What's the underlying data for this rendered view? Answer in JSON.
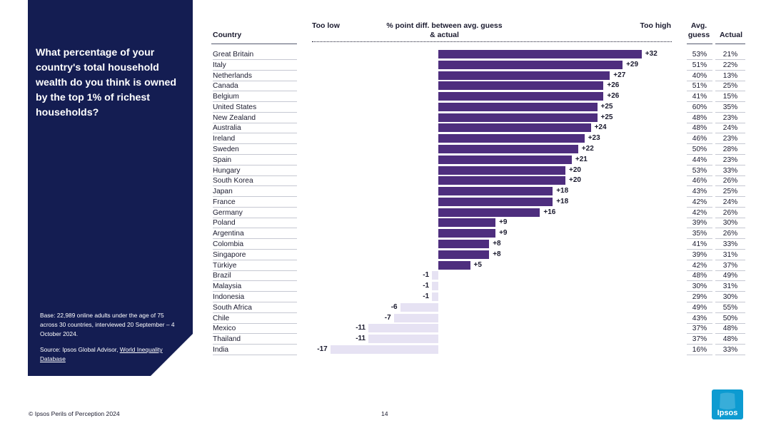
{
  "panel": {
    "question": "What percentage of your country's total household wealth do you think is owned by the top 1% of richest households?",
    "base": "Base: 22,989 online adults under the age of 75 across 30 countries, interviewed 20 September – 4 October 2024.",
    "source_prefix": "Source: Ipsos Global Advisor, ",
    "source_link": "World Inequality Database"
  },
  "headers": {
    "country": "Country",
    "too_low": "Too low",
    "diff": "% point diff. between avg. guess & actual",
    "too_high": "Too high",
    "avg_guess": "Avg. guess",
    "actual": "Actual"
  },
  "chart_data": {
    "type": "bar",
    "orientation": "horizontal-diverging",
    "title": "% point diff. between avg. guess & actual",
    "xlim": [
      -17,
      32
    ],
    "categories": [
      "Great Britain",
      "Italy",
      "Netherlands",
      "Canada",
      "Belgium",
      "United States",
      "New Zealand",
      "Australia",
      "Ireland",
      "Sweden",
      "Spain",
      "Hungary",
      "South Korea",
      "Japan",
      "France",
      "Germany",
      "Poland",
      "Argentina",
      "Colombia",
      "Singapore",
      "Türkiye",
      "Brazil",
      "Malaysia",
      "Indonesia",
      "South Africa",
      "Chile",
      "Mexico",
      "Thailand",
      "India"
    ],
    "values": [
      32,
      29,
      27,
      26,
      26,
      25,
      25,
      24,
      23,
      22,
      21,
      20,
      20,
      18,
      18,
      16,
      9,
      9,
      8,
      8,
      5,
      -1,
      -1,
      -1,
      -6,
      -7,
      -11,
      -11,
      -17
    ],
    "labels": [
      "+32",
      "+29",
      "+27",
      "+26",
      "+26",
      "+25",
      "+25",
      "+24",
      "+23",
      "+22",
      "+21",
      "+20",
      "+20",
      "+18",
      "+18",
      "+16",
      "+9",
      "+9",
      "+8",
      "+8",
      "+5",
      "-1",
      "-1",
      "-1",
      "-6",
      "-7",
      "-11",
      "-11",
      "-17"
    ],
    "avg_guess": [
      "53%",
      "51%",
      "40%",
      "51%",
      "41%",
      "60%",
      "48%",
      "48%",
      "46%",
      "50%",
      "44%",
      "53%",
      "46%",
      "43%",
      "42%",
      "42%",
      "39%",
      "35%",
      "41%",
      "39%",
      "42%",
      "48%",
      "30%",
      "29%",
      "49%",
      "43%",
      "37%",
      "37%",
      "16%"
    ],
    "actual": [
      "21%",
      "22%",
      "13%",
      "25%",
      "15%",
      "35%",
      "23%",
      "24%",
      "23%",
      "28%",
      "23%",
      "33%",
      "26%",
      "25%",
      "24%",
      "26%",
      "30%",
      "26%",
      "33%",
      "31%",
      "37%",
      "49%",
      "31%",
      "30%",
      "55%",
      "50%",
      "48%",
      "48%",
      "33%"
    ],
    "colors": {
      "positive": "#4e2e7e",
      "negative": "#e6e2f3"
    }
  },
  "footer": {
    "copyright": "© Ipsos Perils of Perception 2024",
    "page": "14",
    "logo_text": "Ipsos",
    "logo_color": "#0d9bd1"
  }
}
